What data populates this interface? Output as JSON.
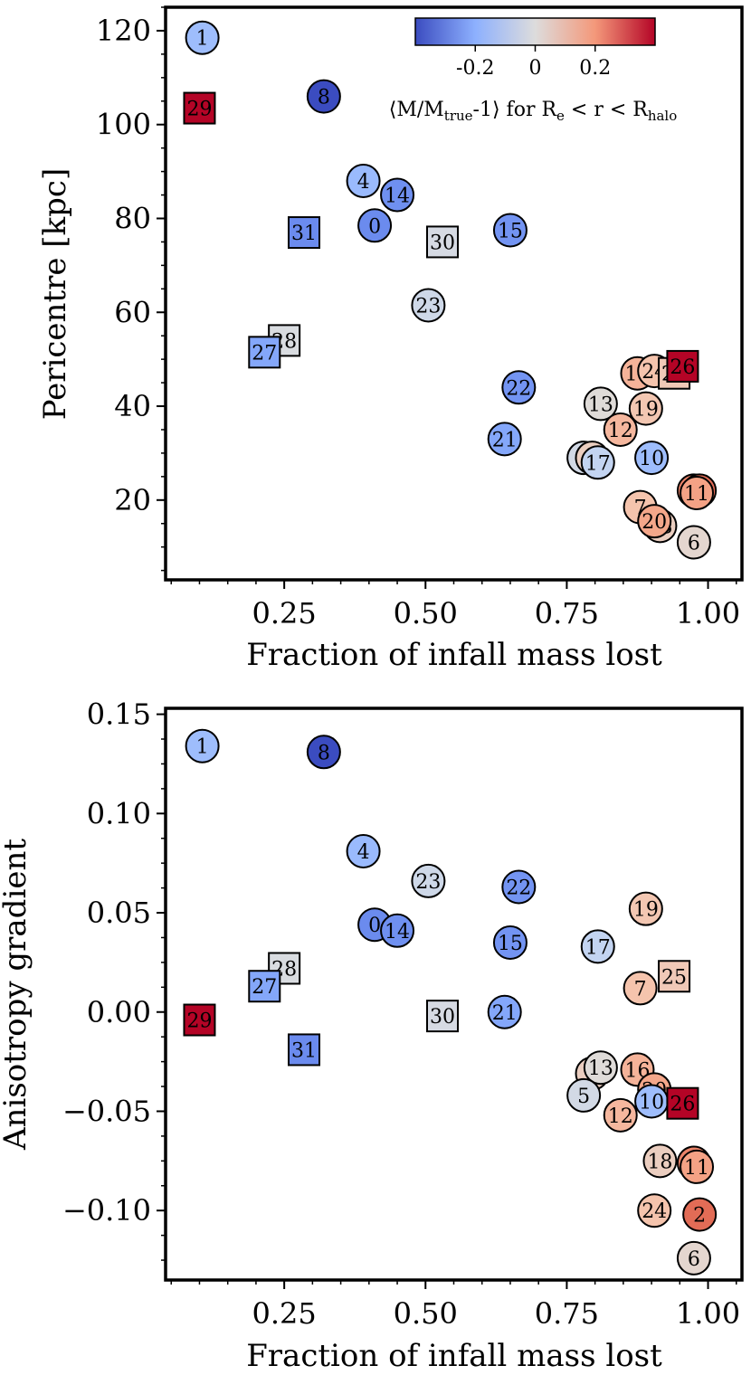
{
  "chart_data": [
    {
      "type": "scatter",
      "xlabel": "Fraction of infall mass lost",
      "ylabel": "Pericentre [kpc]",
      "xlim": [
        0.04,
        1.06
      ],
      "ylim": [
        3,
        125
      ],
      "xticks": [
        0.25,
        0.5,
        0.75,
        1.0
      ],
      "xtick_labels": [
        "0.25",
        "0.50",
        "0.75",
        "1.00"
      ],
      "yticks": [
        20,
        40,
        60,
        80,
        100,
        120
      ],
      "ytick_labels": [
        "20",
        "40",
        "60",
        "80",
        "100",
        "120"
      ],
      "colorbar": {
        "placement": "top-right inset",
        "range": [
          -0.4,
          0.4
        ],
        "ticks": [
          -0.2,
          0,
          0.2
        ],
        "tick_labels": [
          "-0.2",
          "0",
          "0.2"
        ],
        "colormap": "coolwarm",
        "label_parts": {
          "pre": "⟨M/M",
          "sub1": "true",
          "mid": "-1⟩ for R",
          "sub2": "e",
          "mid2": " < r < R",
          "sub3": "halo"
        }
      },
      "points": [
        {
          "id": "1",
          "x": 0.105,
          "y": 118.5,
          "c": -0.16,
          "m": "circle"
        },
        {
          "id": "29",
          "x": 0.1,
          "y": 103.5,
          "c": 0.4,
          "m": "square"
        },
        {
          "id": "8",
          "x": 0.32,
          "y": 106,
          "c": -0.4,
          "m": "circle"
        },
        {
          "id": "4",
          "x": 0.39,
          "y": 88,
          "c": -0.17,
          "m": "circle"
        },
        {
          "id": "14",
          "x": 0.45,
          "y": 85,
          "c": -0.27,
          "m": "circle"
        },
        {
          "id": "0",
          "x": 0.41,
          "y": 78.5,
          "c": -0.28,
          "m": "circle"
        },
        {
          "id": "31",
          "x": 0.285,
          "y": 77,
          "c": -0.28,
          "m": "square"
        },
        {
          "id": "30",
          "x": 0.53,
          "y": 75,
          "c": -0.02,
          "m": "square"
        },
        {
          "id": "15",
          "x": 0.65,
          "y": 77.5,
          "c": -0.26,
          "m": "circle"
        },
        {
          "id": "23",
          "x": 0.505,
          "y": 61.5,
          "c": -0.04,
          "m": "circle"
        },
        {
          "id": "28",
          "x": 0.25,
          "y": 54,
          "c": -0.01,
          "m": "square"
        },
        {
          "id": "27",
          "x": 0.215,
          "y": 51.5,
          "c": -0.22,
          "m": "square"
        },
        {
          "id": "22",
          "x": 0.665,
          "y": 44,
          "c": -0.26,
          "m": "circle"
        },
        {
          "id": "16",
          "x": 0.875,
          "y": 47,
          "c": 0.14,
          "m": "circle"
        },
        {
          "id": "24",
          "x": 0.905,
          "y": 47.5,
          "c": 0.1,
          "m": "circle"
        },
        {
          "id": "25",
          "x": 0.94,
          "y": 47,
          "c": 0.08,
          "m": "square"
        },
        {
          "id": "26",
          "x": 0.955,
          "y": 48.5,
          "c": 0.4,
          "m": "square"
        },
        {
          "id": "13",
          "x": 0.81,
          "y": 40.5,
          "c": 0.01,
          "m": "circle"
        },
        {
          "id": "19",
          "x": 0.89,
          "y": 39.5,
          "c": 0.09,
          "m": "circle"
        },
        {
          "id": "12",
          "x": 0.845,
          "y": 35,
          "c": 0.13,
          "m": "circle"
        },
        {
          "id": "21",
          "x": 0.64,
          "y": 33,
          "c": -0.22,
          "m": "circle"
        },
        {
          "id": "5",
          "x": 0.78,
          "y": 29,
          "c": -0.03,
          "m": "circle"
        },
        {
          "id": "3",
          "x": 0.795,
          "y": 29,
          "c": 0.06,
          "m": "circle"
        },
        {
          "id": "17",
          "x": 0.805,
          "y": 28,
          "c": -0.07,
          "m": "circle"
        },
        {
          "id": "10",
          "x": 0.9,
          "y": 29,
          "c": -0.16,
          "m": "circle"
        },
        {
          "id": "9",
          "x": 0.975,
          "y": 22,
          "c": 0.24,
          "m": "circle"
        },
        {
          "id": "2",
          "x": 0.985,
          "y": 22,
          "c": 0.28,
          "m": "circle"
        },
        {
          "id": "11",
          "x": 0.98,
          "y": 21.5,
          "c": 0.18,
          "m": "circle"
        },
        {
          "id": "7",
          "x": 0.88,
          "y": 18.5,
          "c": 0.1,
          "m": "circle"
        },
        {
          "id": "18",
          "x": 0.915,
          "y": 14.5,
          "c": 0.06,
          "m": "circle"
        },
        {
          "id": "20",
          "x": 0.905,
          "y": 15.5,
          "c": 0.17,
          "m": "circle"
        },
        {
          "id": "6",
          "x": 0.975,
          "y": 11,
          "c": 0.03,
          "m": "circle"
        }
      ]
    },
    {
      "type": "scatter",
      "xlabel": "Fraction of infall mass lost",
      "ylabel": "Anisotropy gradient",
      "xlim": [
        0.04,
        1.06
      ],
      "ylim": [
        -0.135,
        0.153
      ],
      "xticks": [
        0.25,
        0.5,
        0.75,
        1.0
      ],
      "xtick_labels": [
        "0.25",
        "0.50",
        "0.75",
        "1.00"
      ],
      "yticks": [
        -0.1,
        -0.05,
        0.0,
        0.05,
        0.1,
        0.15
      ],
      "ytick_labels": [
        "−0.10",
        "−0.05",
        "0.00",
        "0.05",
        "0.10",
        "0.15"
      ],
      "points": [
        {
          "id": "1",
          "x": 0.105,
          "y": 0.134,
          "c": -0.16,
          "m": "circle"
        },
        {
          "id": "8",
          "x": 0.32,
          "y": 0.131,
          "c": -0.4,
          "m": "circle"
        },
        {
          "id": "4",
          "x": 0.39,
          "y": 0.081,
          "c": -0.17,
          "m": "circle"
        },
        {
          "id": "23",
          "x": 0.505,
          "y": 0.066,
          "c": -0.04,
          "m": "circle"
        },
        {
          "id": "22",
          "x": 0.665,
          "y": 0.063,
          "c": -0.26,
          "m": "circle"
        },
        {
          "id": "19",
          "x": 0.89,
          "y": 0.052,
          "c": 0.09,
          "m": "circle"
        },
        {
          "id": "0",
          "x": 0.41,
          "y": 0.044,
          "c": -0.28,
          "m": "circle"
        },
        {
          "id": "14",
          "x": 0.45,
          "y": 0.041,
          "c": -0.27,
          "m": "circle"
        },
        {
          "id": "15",
          "x": 0.65,
          "y": 0.035,
          "c": -0.26,
          "m": "circle"
        },
        {
          "id": "17",
          "x": 0.805,
          "y": 0.033,
          "c": -0.07,
          "m": "circle"
        },
        {
          "id": "28",
          "x": 0.25,
          "y": 0.022,
          "c": -0.01,
          "m": "square"
        },
        {
          "id": "25",
          "x": 0.94,
          "y": 0.018,
          "c": 0.08,
          "m": "square"
        },
        {
          "id": "27",
          "x": 0.215,
          "y": 0.013,
          "c": -0.22,
          "m": "square"
        },
        {
          "id": "7",
          "x": 0.88,
          "y": 0.012,
          "c": 0.1,
          "m": "circle"
        },
        {
          "id": "29",
          "x": 0.1,
          "y": -0.004,
          "c": 0.4,
          "m": "square"
        },
        {
          "id": "30",
          "x": 0.53,
          "y": -0.002,
          "c": -0.02,
          "m": "square"
        },
        {
          "id": "21",
          "x": 0.64,
          "y": 0.0,
          "c": -0.22,
          "m": "circle"
        },
        {
          "id": "31",
          "x": 0.285,
          "y": -0.019,
          "c": -0.28,
          "m": "square"
        },
        {
          "id": "3",
          "x": 0.795,
          "y": -0.031,
          "c": 0.06,
          "m": "circle"
        },
        {
          "id": "13",
          "x": 0.81,
          "y": -0.028,
          "c": 0.01,
          "m": "circle"
        },
        {
          "id": "16",
          "x": 0.875,
          "y": -0.029,
          "c": 0.14,
          "m": "circle"
        },
        {
          "id": "5",
          "x": 0.78,
          "y": -0.042,
          "c": -0.03,
          "m": "circle"
        },
        {
          "id": "20",
          "x": 0.905,
          "y": -0.039,
          "c": 0.17,
          "m": "circle"
        },
        {
          "id": "10",
          "x": 0.9,
          "y": -0.045,
          "c": -0.16,
          "m": "circle"
        },
        {
          "id": "26",
          "x": 0.955,
          "y": -0.046,
          "c": 0.4,
          "m": "square"
        },
        {
          "id": "12",
          "x": 0.845,
          "y": -0.052,
          "c": 0.13,
          "m": "circle"
        },
        {
          "id": "18",
          "x": 0.915,
          "y": -0.075,
          "c": 0.06,
          "m": "circle"
        },
        {
          "id": "9",
          "x": 0.975,
          "y": -0.076,
          "c": 0.24,
          "m": "circle"
        },
        {
          "id": "11",
          "x": 0.98,
          "y": -0.078,
          "c": 0.18,
          "m": "circle"
        },
        {
          "id": "24",
          "x": 0.905,
          "y": -0.1,
          "c": 0.1,
          "m": "circle"
        },
        {
          "id": "2",
          "x": 0.985,
          "y": -0.102,
          "c": 0.28,
          "m": "circle"
        },
        {
          "id": "6",
          "x": 0.975,
          "y": -0.124,
          "c": 0.03,
          "m": "circle"
        }
      ]
    }
  ]
}
